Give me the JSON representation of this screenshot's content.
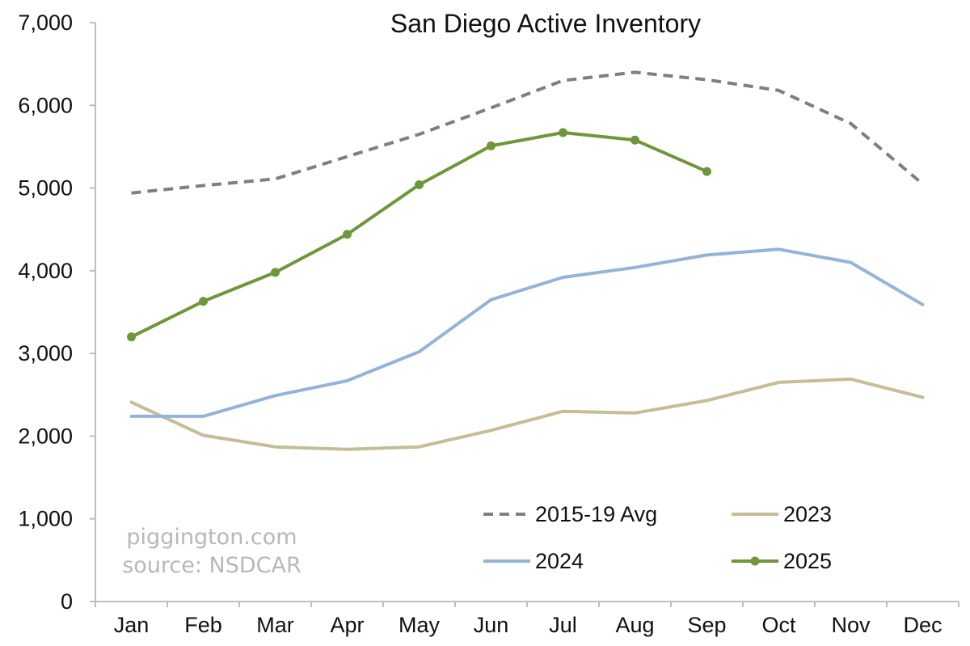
{
  "chart_data": {
    "type": "line",
    "title": "San Diego Active Inventory",
    "xlabel": "",
    "ylabel": "",
    "categories": [
      "Jan",
      "Feb",
      "Mar",
      "Apr",
      "May",
      "Jun",
      "Jul",
      "Aug",
      "Sep",
      "Oct",
      "Nov",
      "Dec"
    ],
    "ylim": [
      0,
      7000
    ],
    "yticks": [
      0,
      1000,
      2000,
      3000,
      4000,
      5000,
      6000,
      7000
    ],
    "ytick_labels": [
      "0",
      "1,000",
      "2,000",
      "3,000",
      "4,000",
      "5,000",
      "6,000",
      "7,000"
    ],
    "grid": false,
    "legend_position": "bottom-right",
    "series": [
      {
        "name": "2015-19 Avg",
        "color": "#7f7f7f",
        "dashed": true,
        "markers": false,
        "values": [
          4940,
          5030,
          5110,
          5380,
          5650,
          5970,
          6300,
          6400,
          6310,
          6180,
          5780,
          5050
        ]
      },
      {
        "name": "2023",
        "color": "#c5bd96",
        "dashed": false,
        "markers": false,
        "values": [
          2410,
          2010,
          1870,
          1840,
          1870,
          2070,
          2300,
          2280,
          2430,
          2650,
          2690,
          2470
        ]
      },
      {
        "name": "2024",
        "color": "#94b3d9",
        "dashed": false,
        "markers": false,
        "values": [
          2240,
          2240,
          2490,
          2670,
          3020,
          3650,
          3920,
          4040,
          4190,
          4260,
          4100,
          3590
        ]
      },
      {
        "name": "2025",
        "color": "#70963a",
        "dashed": false,
        "markers": true,
        "values": [
          3200,
          3630,
          3980,
          4440,
          5040,
          5510,
          5670,
          5580,
          5200,
          null,
          null,
          null
        ]
      }
    ]
  },
  "watermark": {
    "line1": "piggington.com",
    "line2": "source: NSDCAR"
  }
}
